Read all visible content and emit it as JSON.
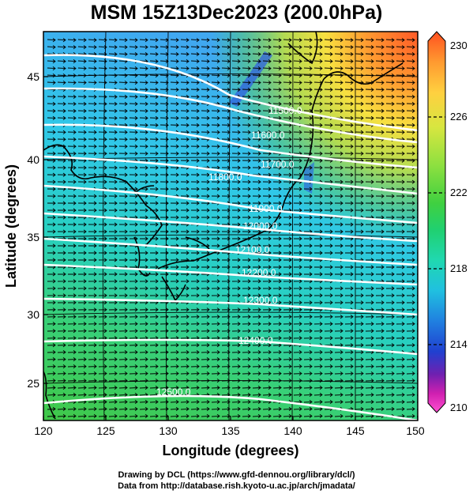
{
  "title": "MSM 15Z13Dec2023 (200.0hPa)",
  "xlabel": "Longitude (degrees)",
  "ylabel": "Latitude  (degrees)",
  "xticks": [
    "120",
    "125",
    "130",
    "135",
    "140",
    "145",
    "150"
  ],
  "yticks": [
    "25",
    "30",
    "35",
    "40",
    "45"
  ],
  "colorbar": {
    "ticks": [
      "230",
      "226",
      "222",
      "218",
      "214",
      "210"
    ],
    "colors": [
      "#ff5020",
      "#ff9a30",
      "#ffd040",
      "#d8e640",
      "#8ee040",
      "#40d040",
      "#20d070",
      "#20d8b0",
      "#20c0e0",
      "#2080e0",
      "#2040d0",
      "#7020b0",
      "#d020b0",
      "#ff50d0"
    ]
  },
  "contour_labels": [
    "11500.0",
    "11600.0",
    "11700.0",
    "11800.0",
    "11900.0",
    "12000.0",
    "12100.0",
    "12200.0",
    "12300.0",
    "12400.0",
    "12500.0"
  ],
  "credits": {
    "line1": "Drawing by DCL (https://www.gfd-dennou.org/library/dcl/)",
    "line2": "Data from http://database.rish.kyoto-u.ac.jp/arch/jmadata/"
  }
}
